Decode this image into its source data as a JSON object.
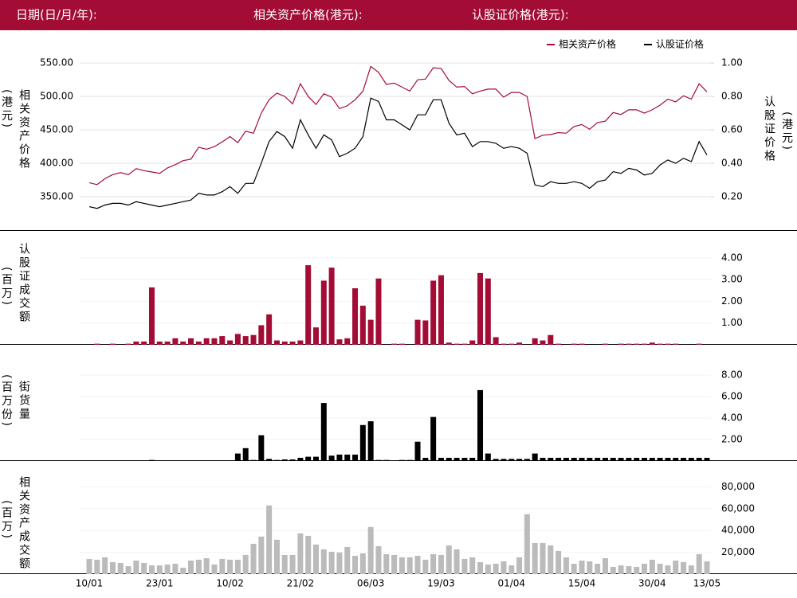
{
  "header": {
    "date_label": "日期(日/月/年):",
    "asset_price_label": "相关资产价格(港元):",
    "warrant_price_label": "认股证价格(港元):"
  },
  "chart_data": [
    {
      "type": "line",
      "y_label": "相关资产价格",
      "y_label_unit": "(港元)",
      "y2_label": "认股证价格",
      "y2_label_unit": "(港元)",
      "grid": true,
      "legend": "top-right",
      "ylim": [
        300,
        580
      ],
      "yticks": [
        {
          "value": 350,
          "label": "350.00"
        },
        {
          "value": 400,
          "label": "400.00"
        },
        {
          "value": 450,
          "label": "450.00"
        },
        {
          "value": 500,
          "label": "500.00"
        },
        {
          "value": 550,
          "label": "550.00"
        }
      ],
      "y2lim": [
        0,
        1.12
      ],
      "y2ticks": [
        {
          "value": 0.2,
          "label": "0.20"
        },
        {
          "value": 0.4,
          "label": "0.40"
        },
        {
          "value": 0.6,
          "label": "0.60"
        },
        {
          "value": 0.8,
          "label": "0.80"
        },
        {
          "value": 1,
          "label": "1.00"
        }
      ],
      "series": [
        {
          "name": "相关资产价格",
          "color": "#a30d35",
          "values": [
            371,
            368,
            377,
            383,
            386,
            383,
            392,
            389,
            387,
            385,
            393,
            398,
            404,
            406,
            424,
            421,
            425,
            432,
            440,
            431,
            448,
            445,
            475,
            495,
            505,
            500,
            489,
            519,
            500,
            488,
            504,
            499,
            482,
            486,
            495,
            508,
            545,
            536,
            518,
            520,
            514,
            508,
            525,
            526,
            543,
            542,
            524,
            514,
            515,
            504,
            508,
            511,
            511,
            499,
            506,
            506,
            500,
            437,
            442,
            443,
            446,
            445,
            455,
            458,
            451,
            461,
            463,
            476,
            473,
            480,
            480,
            475,
            480,
            487,
            496,
            492,
            501,
            496,
            519,
            507
          ]
        },
        {
          "name": "认股证价格",
          "color": "#000000",
          "axis": "y2",
          "values": [
            0.14,
            0.13,
            0.15,
            0.16,
            0.16,
            0.15,
            0.17,
            0.16,
            0.15,
            0.14,
            0.15,
            0.16,
            0.17,
            0.18,
            0.22,
            0.21,
            0.21,
            0.23,
            0.26,
            0.22,
            0.28,
            0.28,
            0.4,
            0.53,
            0.59,
            0.56,
            0.49,
            0.66,
            0.57,
            0.49,
            0.57,
            0.54,
            0.44,
            0.46,
            0.49,
            0.56,
            0.79,
            0.77,
            0.66,
            0.66,
            0.63,
            0.6,
            0.69,
            0.69,
            0.78,
            0.78,
            0.64,
            0.57,
            0.58,
            0.5,
            0.53,
            0.53,
            0.52,
            0.49,
            0.5,
            0.49,
            0.46,
            0.27,
            0.26,
            0.29,
            0.28,
            0.28,
            0.29,
            0.28,
            0.25,
            0.29,
            0.3,
            0.35,
            0.34,
            0.37,
            0.36,
            0.33,
            0.34,
            0.39,
            0.42,
            0.4,
            0.43,
            0.41,
            0.53,
            0.45
          ]
        }
      ]
    },
    {
      "type": "bar",
      "y_label": "认股证成交额",
      "y_label_unit": "(百万)",
      "color": "#a30d35",
      "grid": true,
      "ylim": [
        0,
        5
      ],
      "yticks": [
        {
          "value": 1,
          "label": "1.00"
        },
        {
          "value": 2,
          "label": "2.00"
        },
        {
          "value": 3,
          "label": "3.00"
        },
        {
          "value": 4,
          "label": "4.00"
        }
      ],
      "values": [
        0,
        0.05,
        0,
        0.05,
        0,
        0.05,
        0.15,
        0.15,
        2.64,
        0.15,
        0.15,
        0.3,
        0.15,
        0.3,
        0.15,
        0.3,
        0.3,
        0.4,
        0.2,
        0.5,
        0.4,
        0.45,
        0.9,
        1.4,
        0.2,
        0.15,
        0.15,
        0.2,
        3.66,
        0.8,
        2.95,
        3.55,
        0.25,
        0.3,
        2.6,
        1.8,
        1.15,
        3.05,
        0,
        0.05,
        0.05,
        0,
        1.15,
        1.12,
        2.95,
        3.2,
        0.1,
        0.05,
        0.05,
        0.2,
        3.3,
        3.05,
        0.35,
        0.05,
        0.05,
        0.1,
        0,
        0.3,
        0.2,
        0.45,
        0.05,
        0,
        0.05,
        0.05,
        0,
        0,
        0.05,
        0,
        0.05,
        0.05,
        0.05,
        0.05,
        0.1,
        0.05,
        0.05,
        0.05,
        0,
        0,
        0.05,
        0
      ]
    },
    {
      "type": "bar",
      "y_label": "街货量",
      "y_label_unit": "(百万份)",
      "color": "#000000",
      "grid": true,
      "ylim": [
        0,
        10
      ],
      "yticks": [
        {
          "value": 2,
          "label": "2.00"
        },
        {
          "value": 4,
          "label": "4.00"
        },
        {
          "value": 6,
          "label": "6.00"
        },
        {
          "value": 8,
          "label": "8.00"
        }
      ],
      "values": [
        0,
        0,
        0,
        0,
        0,
        0,
        0,
        0,
        0.1,
        0,
        0,
        0,
        0,
        0,
        0,
        0,
        0,
        0,
        0,
        0.7,
        1.2,
        0.1,
        2.4,
        0.2,
        0.1,
        0.15,
        0.15,
        0.3,
        0.4,
        0.4,
        5.4,
        0.5,
        0.6,
        0.6,
        0.6,
        3.35,
        3.7,
        0.1,
        0.1,
        0,
        0.1,
        0.1,
        1.8,
        0.3,
        4.1,
        0.3,
        0.3,
        0.3,
        0.3,
        0.3,
        6.6,
        0.7,
        0.2,
        0.2,
        0.2,
        0.2,
        0.2,
        0.7,
        0.3,
        0.3,
        0.3,
        0.3,
        0.3,
        0.3,
        0.3,
        0.3,
        0.3,
        0.3,
        0.3,
        0.3,
        0.3,
        0.3,
        0.3,
        0.3,
        0.3,
        0.3,
        0.3,
        0.3,
        0.3,
        0.3
      ]
    },
    {
      "type": "bar",
      "y_label": "相关资产成交额",
      "y_label_unit": "(百万)",
      "color": "#bbbbbb",
      "grid": true,
      "ylim": [
        0,
        100000
      ],
      "yticks": [
        {
          "value": 20000,
          "label": "20,000"
        },
        {
          "value": 40000,
          "label": "40,000"
        },
        {
          "value": 60000,
          "label": "60,000"
        },
        {
          "value": 80000,
          "label": "80,000"
        }
      ],
      "categories": [
        "10/01",
        null,
        null,
        null,
        null,
        null,
        null,
        null,
        null,
        "23/01",
        null,
        null,
        null,
        null,
        null,
        null,
        null,
        null,
        "10/02",
        null,
        null,
        null,
        null,
        null,
        null,
        null,
        null,
        "21/02",
        null,
        null,
        null,
        null,
        null,
        null,
        null,
        null,
        "06/03",
        null,
        null,
        null,
        null,
        null,
        null,
        null,
        null,
        "19/03",
        null,
        null,
        null,
        null,
        null,
        null,
        null,
        null,
        "01/04",
        null,
        null,
        null,
        null,
        null,
        null,
        null,
        null,
        "15/04",
        null,
        null,
        null,
        null,
        null,
        null,
        null,
        null,
        "30/04",
        null,
        null,
        null,
        null,
        null,
        null,
        "13/05"
      ],
      "values": [
        13900,
        13200,
        15400,
        11000,
        10200,
        7300,
        12400,
        10200,
        8000,
        8000,
        8800,
        9500,
        5900,
        12400,
        13200,
        14600,
        8800,
        13900,
        13200,
        13200,
        17600,
        27800,
        34400,
        62900,
        31500,
        17600,
        17600,
        37300,
        35100,
        27100,
        22700,
        20500,
        19800,
        24900,
        16800,
        19000,
        43200,
        25600,
        18300,
        17600,
        15400,
        15400,
        16800,
        13200,
        18300,
        17600,
        26300,
        22700,
        13900,
        15400,
        11000,
        8800,
        9500,
        11700,
        8000,
        15400,
        54900,
        28500,
        28500,
        26300,
        21200,
        15400,
        9500,
        12400,
        11700,
        9500,
        14600,
        6600,
        8000,
        7300,
        6600,
        9500,
        13200,
        9500,
        8000,
        12400,
        11000,
        8000,
        18300,
        11700
      ]
    }
  ]
}
